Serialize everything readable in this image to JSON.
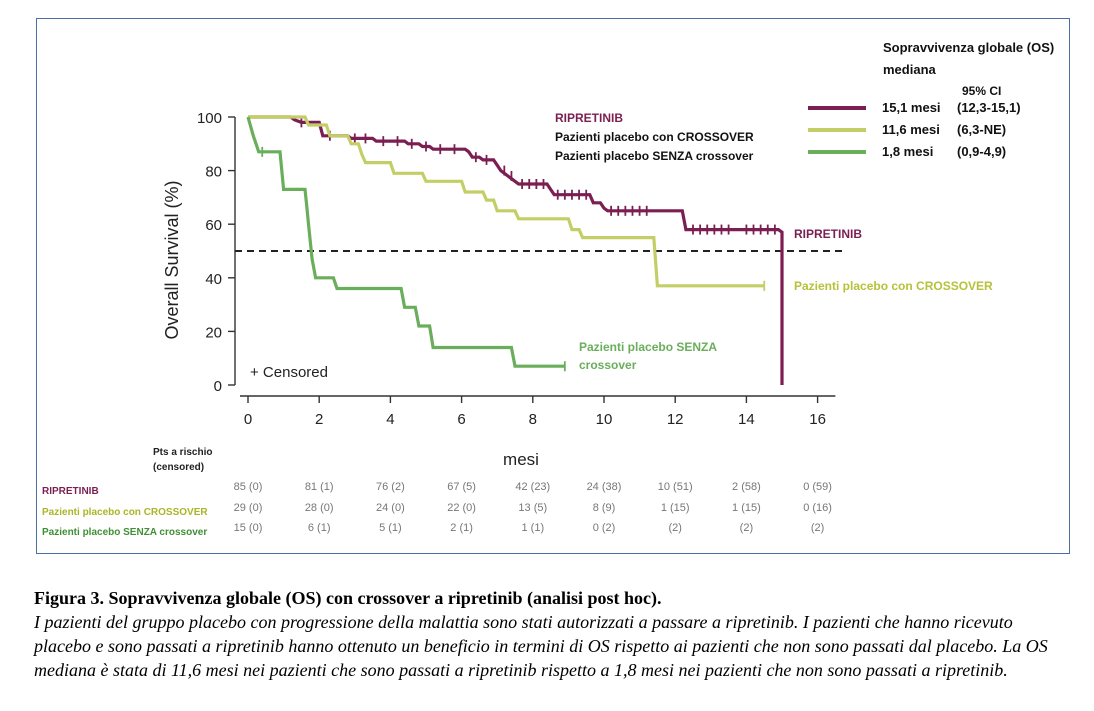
{
  "chart_data": {
    "type": "line",
    "subtype": "kaplan-meier",
    "ylabel": "Overall Survival (%)",
    "xlabel": "mesi",
    "x_ticks": [
      0,
      2,
      4,
      6,
      8,
      10,
      12,
      14,
      16
    ],
    "y_ticks": [
      0,
      20,
      40,
      60,
      80,
      100
    ],
    "xlim": [
      0,
      16
    ],
    "ylim": [
      0,
      100
    ],
    "reference_line_y": 50,
    "censored_label": "+ Censored",
    "legend": {
      "title": "Sopravvivenza globale (OS) mediana",
      "ci_header": "95% CI",
      "entries": [
        {
          "median": "15,1 mesi",
          "ci": "(12,3-15,1)",
          "color": "#7b1f52"
        },
        {
          "median": "11,6 mesi",
          "ci": "(6,3-NE)",
          "color": "#c3cf66"
        },
        {
          "median": "1,8 mesi",
          "ci": "(0,9-4,9)",
          "color": "#6aae5c"
        }
      ]
    },
    "inline_legend": [
      "RIPRETINIB",
      "Pazienti placebo con CROSSOVER",
      "Pazienti placebo SENZA crossover"
    ],
    "series": [
      {
        "name": "RIPRETINIB",
        "end_label": "RIPRETINIB",
        "color": "#7b1f52",
        "points": [
          [
            0,
            100
          ],
          [
            1.2,
            100
          ],
          [
            1.3,
            99
          ],
          [
            1.5,
            98
          ],
          [
            2.0,
            98
          ],
          [
            2.1,
            93
          ],
          [
            2.8,
            93
          ],
          [
            2.9,
            92
          ],
          [
            3.5,
            92
          ],
          [
            3.6,
            91
          ],
          [
            4.4,
            91
          ],
          [
            4.5,
            90
          ],
          [
            4.8,
            90
          ],
          [
            4.9,
            89
          ],
          [
            5.1,
            89
          ],
          [
            5.2,
            88
          ],
          [
            6.1,
            88
          ],
          [
            6.2,
            87
          ],
          [
            6.3,
            85
          ],
          [
            6.5,
            85
          ],
          [
            6.6,
            84
          ],
          [
            6.9,
            84
          ],
          [
            7.0,
            82
          ],
          [
            7.1,
            80
          ],
          [
            7.3,
            78
          ],
          [
            7.5,
            76
          ],
          [
            7.6,
            75
          ],
          [
            8.4,
            75
          ],
          [
            8.5,
            73
          ],
          [
            8.6,
            71
          ],
          [
            9.6,
            71
          ],
          [
            9.7,
            68
          ],
          [
            9.9,
            68
          ],
          [
            10.0,
            66
          ],
          [
            10.1,
            65
          ],
          [
            12.2,
            65
          ],
          [
            12.3,
            58
          ],
          [
            14.9,
            58
          ],
          [
            15.0,
            57
          ],
          [
            15.0,
            0
          ]
        ],
        "censor_x": [
          1.5,
          2.3,
          3.0,
          3.3,
          3.8,
          4.2,
          4.6,
          5.0,
          5.4,
          5.8,
          6.4,
          6.7,
          7.2,
          7.4,
          7.7,
          7.9,
          8.1,
          8.3,
          8.7,
          8.9,
          9.1,
          9.3,
          9.5,
          10.2,
          10.4,
          10.6,
          10.8,
          11.0,
          11.2,
          12.5,
          12.7,
          12.9,
          13.1,
          13.3,
          13.5,
          14.0,
          14.2,
          14.4,
          14.6,
          14.8
        ],
        "risk": [
          "85 (0)",
          "81 (1)",
          "76 (2)",
          "67 (5)",
          "42 (23)",
          "24 (38)",
          "10 (51)",
          "2 (58)",
          "0 (59)"
        ]
      },
      {
        "name": "Pazienti placebo con CROSSOVER",
        "end_label": "Pazienti placebo con CROSSOVER",
        "color": "#c3cf66",
        "points": [
          [
            0,
            100
          ],
          [
            1.6,
            100
          ],
          [
            1.7,
            97
          ],
          [
            2.2,
            97
          ],
          [
            2.3,
            93
          ],
          [
            2.8,
            93
          ],
          [
            2.9,
            90
          ],
          [
            3.1,
            90
          ],
          [
            3.2,
            86
          ],
          [
            3.3,
            83
          ],
          [
            4.0,
            83
          ],
          [
            4.1,
            79
          ],
          [
            4.9,
            79
          ],
          [
            5.0,
            76
          ],
          [
            6.0,
            76
          ],
          [
            6.1,
            72
          ],
          [
            6.6,
            72
          ],
          [
            6.7,
            69
          ],
          [
            6.9,
            69
          ],
          [
            7.0,
            65
          ],
          [
            7.5,
            65
          ],
          [
            7.6,
            62
          ],
          [
            9.0,
            62
          ],
          [
            9.1,
            58
          ],
          [
            9.3,
            58
          ],
          [
            9.4,
            55
          ],
          [
            11.4,
            55
          ],
          [
            11.5,
            37
          ],
          [
            14.5,
            37
          ]
        ],
        "censor_x": [
          14.5
        ],
        "risk": [
          "29 (0)",
          "28 (0)",
          "24 (0)",
          "22 (0)",
          "13 (5)",
          "8 (9)",
          "1 (15)",
          "1 (15)",
          "0 (16)"
        ]
      },
      {
        "name": "Pazienti placebo SENZA crossover",
        "end_label": "Pazienti placebo SENZA crossover",
        "color": "#6aae5c",
        "points": [
          [
            0,
            100
          ],
          [
            0.15,
            93
          ],
          [
            0.3,
            87
          ],
          [
            0.9,
            87
          ],
          [
            0.95,
            80
          ],
          [
            1.0,
            73
          ],
          [
            1.6,
            73
          ],
          [
            1.65,
            67
          ],
          [
            1.7,
            60
          ],
          [
            1.8,
            47
          ],
          [
            1.9,
            40
          ],
          [
            2.4,
            40
          ],
          [
            2.5,
            36
          ],
          [
            4.3,
            36
          ],
          [
            4.4,
            29
          ],
          [
            4.7,
            29
          ],
          [
            4.8,
            22
          ],
          [
            5.1,
            22
          ],
          [
            5.2,
            14
          ],
          [
            7.4,
            14
          ],
          [
            7.5,
            7
          ],
          [
            8.9,
            7
          ]
        ],
        "censor_x": [
          0.4,
          8.9
        ],
        "risk": [
          "15 (0)",
          "6 (1)",
          "5 (1)",
          "2 (1)",
          "1 (1)",
          "0 (2)",
          "(2)",
          "(2)",
          "(2)"
        ]
      }
    ],
    "risk_table": {
      "header": "Pts a rischio (censored)",
      "x": [
        0,
        2,
        4,
        6,
        8,
        10,
        12,
        14,
        16
      ]
    }
  },
  "caption": {
    "title": "Figura 3. Sopravvivenza globale (OS) con crossover a ripretinib (analisi post hoc).",
    "body": "I pazienti del gruppo placebo con progressione della malattia sono stati autorizzati a passare a ripretinib. I pazienti che hanno ricevuto placebo e sono passati a ripretinib hanno ottenuto un beneficio in termini di OS rispetto ai pazienti che non sono passati dal placebo. La OS mediana è stata di 11,6 mesi nei pazienti che sono passati a ripretinib rispetto a 1,8 mesi nei pazienti che non sono passati a ripretinib."
  }
}
